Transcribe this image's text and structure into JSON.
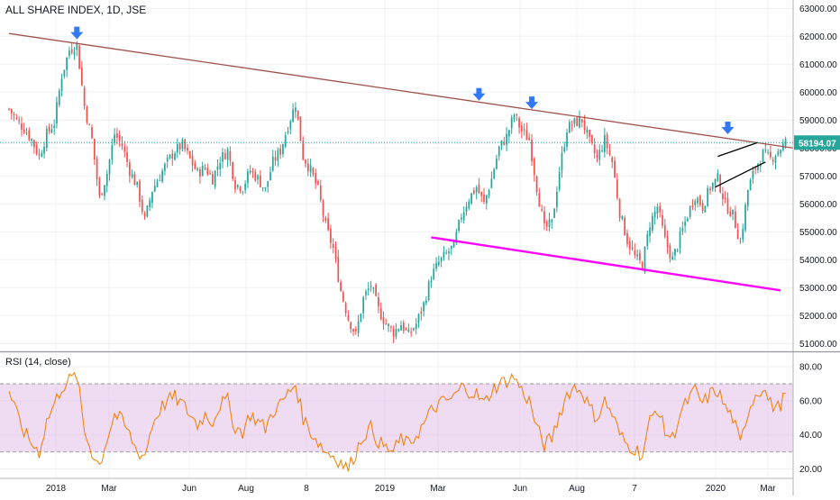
{
  "chart_data": [
    {
      "type": "candlestick",
      "title": "ALL SHARE INDEX, 1D, JSE",
      "ylim": [
        50750,
        63300
      ],
      "y_ticks": [
        "63000.00",
        "62000.00",
        "61000.00",
        "60000.00",
        "59000.00",
        "58000.00",
        "57000.00",
        "56000.00",
        "55000.00",
        "54000.00",
        "53000.00",
        "52000.00",
        "51000.00"
      ],
      "last_price": "58194.07",
      "x_ticks": [
        "2018",
        "Mar",
        "Jun",
        "Aug",
        "8",
        "2019",
        "Mar",
        "Jun",
        "Aug",
        "7",
        "2020",
        "Mar"
      ],
      "series_close": [
        [
          0,
          59400
        ],
        [
          3,
          59000
        ],
        [
          6,
          58700
        ],
        [
          9,
          58300
        ],
        [
          12,
          57700
        ],
        [
          15,
          58500
        ],
        [
          18,
          58900
        ],
        [
          21,
          60600
        ],
        [
          24,
          61500
        ],
        [
          27,
          61700
        ],
        [
          30,
          59500
        ],
        [
          33,
          58300
        ],
        [
          36,
          56200
        ],
        [
          39,
          57100
        ],
        [
          42,
          58500
        ],
        [
          45,
          58100
        ],
        [
          48,
          57200
        ],
        [
          51,
          56600
        ],
        [
          54,
          55400
        ],
        [
          57,
          56500
        ],
        [
          60,
          57000
        ],
        [
          63,
          57500
        ],
        [
          66,
          57900
        ],
        [
          69,
          58100
        ],
        [
          72,
          57600
        ],
        [
          75,
          57100
        ],
        [
          78,
          57300
        ],
        [
          81,
          56900
        ],
        [
          84,
          57600
        ],
        [
          87,
          57900
        ],
        [
          90,
          56700
        ],
        [
          93,
          56600
        ],
        [
          96,
          57200
        ],
        [
          99,
          56900
        ],
        [
          102,
          56500
        ],
        [
          105,
          57500
        ],
        [
          108,
          57900
        ],
        [
          111,
          58800
        ],
        [
          114,
          59600
        ],
        [
          117,
          57700
        ],
        [
          120,
          57200
        ],
        [
          123,
          56500
        ],
        [
          126,
          55200
        ],
        [
          129,
          54400
        ],
        [
          132,
          52900
        ],
        [
          135,
          51900
        ],
        [
          138,
          51300
        ],
        [
          141,
          52600
        ],
        [
          144,
          53100
        ],
        [
          147,
          52200
        ],
        [
          150,
          51700
        ],
        [
          153,
          51400
        ],
        [
          156,
          51700
        ],
        [
          159,
          51300
        ],
        [
          162,
          51700
        ],
        [
          165,
          52400
        ],
        [
          168,
          53400
        ],
        [
          171,
          53900
        ],
        [
          174,
          54200
        ],
        [
          177,
          54500
        ],
        [
          180,
          55600
        ],
        [
          183,
          56200
        ],
        [
          186,
          56600
        ],
        [
          189,
          56000
        ],
        [
          192,
          56900
        ],
        [
          195,
          58000
        ],
        [
          198,
          58400
        ],
        [
          201,
          59200
        ],
        [
          204,
          58600
        ],
        [
          207,
          58300
        ],
        [
          210,
          56600
        ],
        [
          213,
          55100
        ],
        [
          216,
          55300
        ],
        [
          219,
          57200
        ],
        [
          222,
          58700
        ],
        [
          225,
          58900
        ],
        [
          228,
          59000
        ],
        [
          231,
          58200
        ],
        [
          234,
          57600
        ],
        [
          237,
          58300
        ],
        [
          240,
          57500
        ],
        [
          243,
          55700
        ],
        [
          246,
          54700
        ],
        [
          249,
          54100
        ],
        [
          252,
          53800
        ],
        [
          255,
          55300
        ],
        [
          258,
          55900
        ],
        [
          261,
          54700
        ],
        [
          264,
          54000
        ],
        [
          267,
          54800
        ],
        [
          270,
          55600
        ],
        [
          273,
          56300
        ],
        [
          276,
          55900
        ],
        [
          279,
          56600
        ],
        [
          282,
          56900
        ],
        [
          285,
          56000
        ],
        [
          288,
          55600
        ],
        [
          291,
          54600
        ],
        [
          294,
          56500
        ],
        [
          297,
          57300
        ],
        [
          300,
          57800
        ],
        [
          303,
          57600
        ],
        [
          306,
          57900
        ],
        [
          309,
          58194
        ]
      ],
      "trendlines": [
        {
          "name": "resistance",
          "color": "#a0524d",
          "points": [
            [
              0,
              62100
            ],
            [
              312,
              58000
            ]
          ]
        },
        {
          "name": "support",
          "color": "#ff00ff",
          "points": [
            [
              168,
              54800
            ],
            [
              307,
              52900
            ]
          ]
        },
        {
          "name": "channel-upper",
          "color": "#000000",
          "points": [
            [
              282,
              57700
            ],
            [
              298,
              58200
            ]
          ]
        },
        {
          "name": "channel-lower",
          "color": "#000000",
          "points": [
            [
              281,
              56600
            ],
            [
              301,
              57500
            ]
          ]
        }
      ],
      "arrow_markers": [
        {
          "x": 27,
          "y": 61700
        },
        {
          "x": 187,
          "y": 59500
        },
        {
          "x": 208,
          "y": 59200
        },
        {
          "x": 286,
          "y": 58300
        }
      ],
      "colors": {
        "up": "#26a69a",
        "down": "#ef5350",
        "arrow": "#2962ff",
        "price_label": "#26a69a",
        "rsi": "#f57c00",
        "rsi_band": "#e1bee7"
      }
    },
    {
      "type": "line",
      "title": "RSI (14, close)",
      "ylim": [
        15,
        88
      ],
      "y_ticks": [
        "80.00",
        "60.00",
        "40.00",
        "20.00"
      ],
      "band": [
        30,
        70
      ],
      "series_values": [
        [
          0,
          66
        ],
        [
          3,
          52
        ],
        [
          6,
          42
        ],
        [
          9,
          35
        ],
        [
          12,
          30
        ],
        [
          15,
          48
        ],
        [
          18,
          58
        ],
        [
          21,
          68
        ],
        [
          24,
          72
        ],
        [
          27,
          75
        ],
        [
          30,
          42
        ],
        [
          33,
          30
        ],
        [
          36,
          22
        ],
        [
          39,
          38
        ],
        [
          42,
          52
        ],
        [
          45,
          48
        ],
        [
          48,
          40
        ],
        [
          51,
          30
        ],
        [
          54,
          28
        ],
        [
          57,
          46
        ],
        [
          60,
          55
        ],
        [
          63,
          60
        ],
        [
          66,
          62
        ],
        [
          69,
          58
        ],
        [
          72,
          52
        ],
        [
          75,
          46
        ],
        [
          78,
          52
        ],
        [
          81,
          48
        ],
        [
          84,
          58
        ],
        [
          87,
          60
        ],
        [
          90,
          44
        ],
        [
          93,
          42
        ],
        [
          96,
          52
        ],
        [
          99,
          48
        ],
        [
          102,
          44
        ],
        [
          105,
          54
        ],
        [
          108,
          58
        ],
        [
          111,
          64
        ],
        [
          114,
          70
        ],
        [
          117,
          50
        ],
        [
          120,
          42
        ],
        [
          123,
          36
        ],
        [
          126,
          30
        ],
        [
          129,
          28
        ],
        [
          132,
          24
        ],
        [
          135,
          20
        ],
        [
          138,
          30
        ],
        [
          141,
          40
        ],
        [
          144,
          44
        ],
        [
          147,
          36
        ],
        [
          150,
          32
        ],
        [
          153,
          30
        ],
        [
          156,
          38
        ],
        [
          159,
          34
        ],
        [
          162,
          40
        ],
        [
          165,
          46
        ],
        [
          168,
          54
        ],
        [
          171,
          58
        ],
        [
          174,
          60
        ],
        [
          177,
          62
        ],
        [
          180,
          68
        ],
        [
          183,
          66
        ],
        [
          186,
          64
        ],
        [
          189,
          58
        ],
        [
          192,
          66
        ],
        [
          195,
          70
        ],
        [
          198,
          72
        ],
        [
          201,
          74
        ],
        [
          204,
          66
        ],
        [
          207,
          60
        ],
        [
          210,
          44
        ],
        [
          213,
          34
        ],
        [
          216,
          38
        ],
        [
          219,
          52
        ],
        [
          222,
          64
        ],
        [
          225,
          68
        ],
        [
          228,
          66
        ],
        [
          231,
          56
        ],
        [
          234,
          50
        ],
        [
          237,
          60
        ],
        [
          240,
          52
        ],
        [
          243,
          40
        ],
        [
          246,
          34
        ],
        [
          249,
          32
        ],
        [
          252,
          28
        ],
        [
          255,
          48
        ],
        [
          258,
          56
        ],
        [
          261,
          42
        ],
        [
          264,
          38
        ],
        [
          267,
          52
        ],
        [
          270,
          60
        ],
        [
          273,
          66
        ],
        [
          276,
          58
        ],
        [
          279,
          64
        ],
        [
          282,
          66
        ],
        [
          285,
          56
        ],
        [
          288,
          50
        ],
        [
          291,
          34
        ],
        [
          294,
          54
        ],
        [
          297,
          64
        ],
        [
          300,
          68
        ],
        [
          303,
          58
        ],
        [
          306,
          56
        ],
        [
          309,
          63
        ]
      ]
    }
  ]
}
